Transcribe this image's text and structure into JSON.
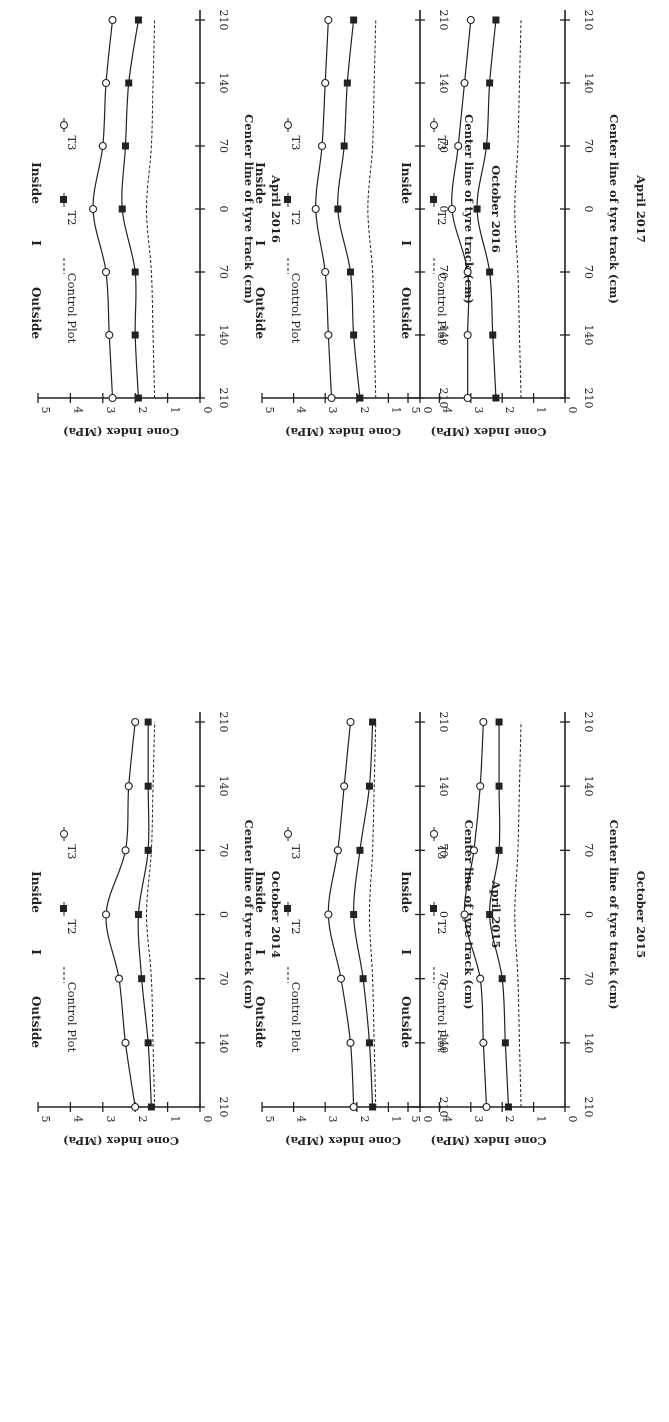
{
  "chart_data": [
    {
      "type": "line",
      "title": "October 2014",
      "xlabel": "Center line of tyre track (cm)",
      "ylabel": "Cone Index (MPa)",
      "x": [
        -210,
        -140,
        -70,
        0,
        70,
        140,
        210
      ],
      "x_tick_labels": [
        "210",
        "140",
        "70",
        "0",
        "70",
        "140",
        "210"
      ],
      "ylim": [
        0,
        5
      ],
      "y_ticks": [
        "0",
        "1",
        "2",
        "3",
        "4",
        "5"
      ],
      "header": {
        "left": "Outside",
        "mid": "I",
        "right": "Inside"
      },
      "series": [
        {
          "name": "Control Plot",
          "values": [
            1.4,
            1.45,
            1.5,
            1.65,
            1.5,
            1.45,
            1.4
          ]
        },
        {
          "name": "T2",
          "values": [
            1.5,
            1.6,
            1.8,
            1.9,
            1.6,
            1.6,
            1.6
          ]
        },
        {
          "name": "T3",
          "values": [
            2.0,
            2.3,
            2.5,
            2.9,
            2.3,
            2.2,
            2.0
          ]
        }
      ]
    },
    {
      "type": "line",
      "title": "April 2015",
      "xlabel": "Center line of tyre track (cm)",
      "ylabel": "Cone Index (MPa)",
      "x": [
        -210,
        -140,
        -70,
        0,
        70,
        140,
        210
      ],
      "x_tick_labels": [
        "210",
        "140",
        "70",
        "0",
        "70",
        "140",
        "210"
      ],
      "ylim": [
        0,
        5
      ],
      "y_ticks": [
        "0",
        "1",
        "2",
        "3",
        "4",
        "5"
      ],
      "header": {
        "left": "Outside",
        "mid": "I",
        "right": "Inside"
      },
      "series": [
        {
          "name": "Control Plot",
          "values": [
            1.4,
            1.45,
            1.5,
            1.6,
            1.5,
            1.45,
            1.4
          ]
        },
        {
          "name": "T2",
          "values": [
            1.5,
            1.6,
            1.8,
            2.1,
            1.9,
            1.6,
            1.5
          ]
        },
        {
          "name": "T3",
          "values": [
            2.1,
            2.2,
            2.5,
            2.9,
            2.6,
            2.4,
            2.2
          ]
        }
      ]
    },
    {
      "type": "line",
      "title": "October 2015",
      "xlabel": "Center line of tyre track (cm)",
      "ylabel": "Cone Index (MPa)",
      "x": [
        -210,
        -140,
        -70,
        0,
        70,
        140,
        210
      ],
      "x_tick_labels": [
        "210",
        "140",
        "70",
        "0",
        "70",
        "140",
        "210"
      ],
      "ylim": [
        0,
        5
      ],
      "y_ticks": [
        "0",
        "1",
        "2",
        "3",
        "4",
        "5"
      ],
      "header": {
        "left": "Outside",
        "mid": "I",
        "right": "Inside"
      },
      "series": [
        {
          "name": "Control Plot",
          "values": [
            1.4,
            1.45,
            1.5,
            1.6,
            1.5,
            1.45,
            1.4
          ]
        },
        {
          "name": "T2",
          "values": [
            1.8,
            1.9,
            2.0,
            2.4,
            2.1,
            2.1,
            2.1
          ]
        },
        {
          "name": "T3",
          "values": [
            2.5,
            2.6,
            2.7,
            3.2,
            2.9,
            2.7,
            2.6
          ]
        }
      ]
    },
    {
      "type": "line",
      "title": "April 2016",
      "xlabel": "Center line of tyre track (cm)",
      "ylabel": "Cone Index (MPa)",
      "x": [
        -210,
        -140,
        -70,
        0,
        70,
        140,
        210
      ],
      "x_tick_labels": [
        "210",
        "140",
        "70",
        "0",
        "70",
        "140",
        "210"
      ],
      "ylim": [
        0,
        5
      ],
      "y_ticks": [
        "0",
        "1",
        "2",
        "3",
        "4",
        "5"
      ],
      "header": {
        "left": "Outside",
        "mid": "I",
        "right": "Inside"
      },
      "series": [
        {
          "name": "Control Plot",
          "values": [
            1.4,
            1.45,
            1.5,
            1.65,
            1.5,
            1.45,
            1.4
          ]
        },
        {
          "name": "T2",
          "values": [
            1.9,
            2.0,
            2.0,
            2.4,
            2.3,
            2.2,
            1.9
          ]
        },
        {
          "name": "T3",
          "values": [
            2.7,
            2.8,
            2.9,
            3.3,
            3.0,
            2.9,
            2.7
          ]
        }
      ]
    },
    {
      "type": "line",
      "title": "October 2016",
      "xlabel": "Center line of tyre track (cm)",
      "ylabel": "Cone Index (MPa)",
      "x": [
        -210,
        -140,
        -70,
        0,
        70,
        140,
        210
      ],
      "x_tick_labels": [
        "210",
        "140",
        "70",
        "0",
        "70",
        "140",
        "210"
      ],
      "ylim": [
        0,
        5
      ],
      "y_ticks": [
        "0",
        "1",
        "2",
        "3",
        "4",
        "5"
      ],
      "header": {
        "left": "Outside",
        "mid": "I",
        "right": "Inside"
      },
      "series": [
        {
          "name": "Control Plot",
          "values": [
            1.4,
            1.45,
            1.5,
            1.65,
            1.5,
            1.45,
            1.4
          ]
        },
        {
          "name": "T2",
          "values": [
            1.9,
            2.1,
            2.2,
            2.6,
            2.4,
            2.3,
            2.1
          ]
        },
        {
          "name": "T3",
          "values": [
            2.8,
            2.9,
            3.0,
            3.3,
            3.1,
            3.0,
            2.9
          ]
        }
      ]
    },
    {
      "type": "line",
      "title": "April 2017",
      "xlabel": "Center line of tyre track (cm)",
      "ylabel": "Cone Index (MPa)",
      "x": [
        -210,
        -140,
        -70,
        0,
        70,
        140,
        210
      ],
      "x_tick_labels": [
        "210",
        "140",
        "70",
        "0",
        "70",
        "140",
        "210"
      ],
      "ylim": [
        0,
        5
      ],
      "y_ticks": [
        "0",
        "1",
        "2",
        "3",
        "4",
        "5"
      ],
      "header": {
        "left": "Outside",
        "mid": "I",
        "right": "Inside"
      },
      "series": [
        {
          "name": "Control Plot",
          "values": [
            1.4,
            1.45,
            1.5,
            1.6,
            1.5,
            1.45,
            1.4
          ]
        },
        {
          "name": "T2",
          "values": [
            2.2,
            2.3,
            2.4,
            2.8,
            2.5,
            2.4,
            2.2
          ]
        },
        {
          "name": "T3",
          "values": [
            3.1,
            3.1,
            3.1,
            3.6,
            3.4,
            3.2,
            3.0
          ]
        }
      ]
    }
  ]
}
